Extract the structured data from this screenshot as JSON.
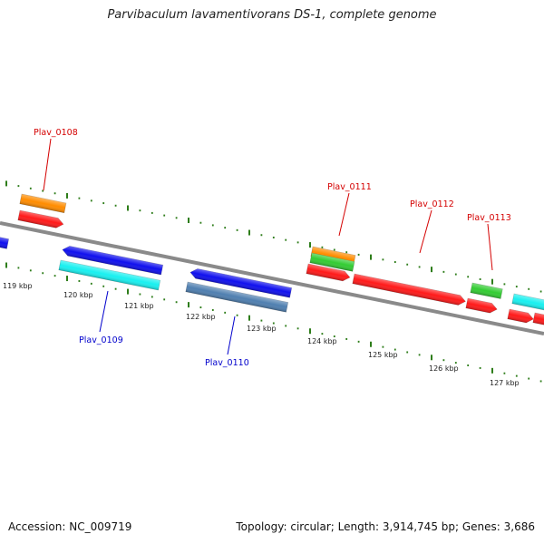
{
  "title": "Parvibaculum lavamentivorans DS-1, complete genome",
  "accession": "Accession: NC_009719",
  "summary": "Topology: circular; Length: 3,914,745 bp; Genes: 3,686",
  "colors": {
    "backbone": "#8a8a8a",
    "tick": "#2e7d1a",
    "label_forward": "#d40000",
    "label_reverse": "#0000cc",
    "gene_red": "#ff1a1a",
    "gene_orange": "#ff8c00",
    "gene_green": "#33cc33",
    "gene_blue": "#1010ee",
    "gene_cyan": "#19f0f0",
    "gene_steel": "#4f7fb0"
  },
  "kbp_labels": [
    "119 kbp",
    "120 kbp",
    "121 kbp",
    "122 kbp",
    "123 kbp",
    "124 kbp",
    "125 kbp",
    "126 kbp",
    "127 kbp"
  ],
  "gene_labels": [
    {
      "id": "Plav_0108",
      "strand": "forward"
    },
    {
      "id": "Plav_0109",
      "strand": "reverse"
    },
    {
      "id": "Plav_0110",
      "strand": "reverse"
    },
    {
      "id": "Plav_0111",
      "strand": "forward"
    },
    {
      "id": "Plav_0112",
      "strand": "forward"
    },
    {
      "id": "Plav_0113",
      "strand": "forward"
    }
  ]
}
